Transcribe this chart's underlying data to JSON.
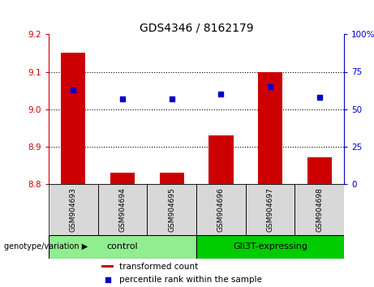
{
  "title": "GDS4346 / 8162179",
  "samples": [
    "GSM904693",
    "GSM904694",
    "GSM904695",
    "GSM904696",
    "GSM904697",
    "GSM904698"
  ],
  "bar_values": [
    9.15,
    8.83,
    8.83,
    8.93,
    9.1,
    8.87
  ],
  "bar_base": 8.8,
  "percentile_values": [
    63,
    57,
    57,
    60,
    65,
    58
  ],
  "ylim_left": [
    8.8,
    9.2
  ],
  "ylim_right": [
    0,
    100
  ],
  "yticks_left": [
    8.8,
    8.9,
    9.0,
    9.1,
    9.2
  ],
  "yticks_right": [
    0,
    25,
    50,
    75,
    100
  ],
  "bar_color": "#cc0000",
  "dot_color": "#0000cc",
  "groups": [
    {
      "label": "control",
      "indices": [
        0,
        1,
        2
      ],
      "color": "#90ee90"
    },
    {
      "label": "Gli3T-expressing",
      "indices": [
        3,
        4,
        5
      ],
      "color": "#00cc00"
    }
  ],
  "group_label_prefix": "genotype/variation ▶",
  "legend_bar_label": "transformed count",
  "legend_dot_label": "percentile rank within the sample",
  "title_fontsize": 10,
  "tick_fontsize": 7.5,
  "sample_fontsize": 6.5,
  "group_fontsize": 8,
  "legend_fontsize": 7.5,
  "bar_color_light": "#d0d0d0",
  "sample_bg_color": "#d8d8d8"
}
